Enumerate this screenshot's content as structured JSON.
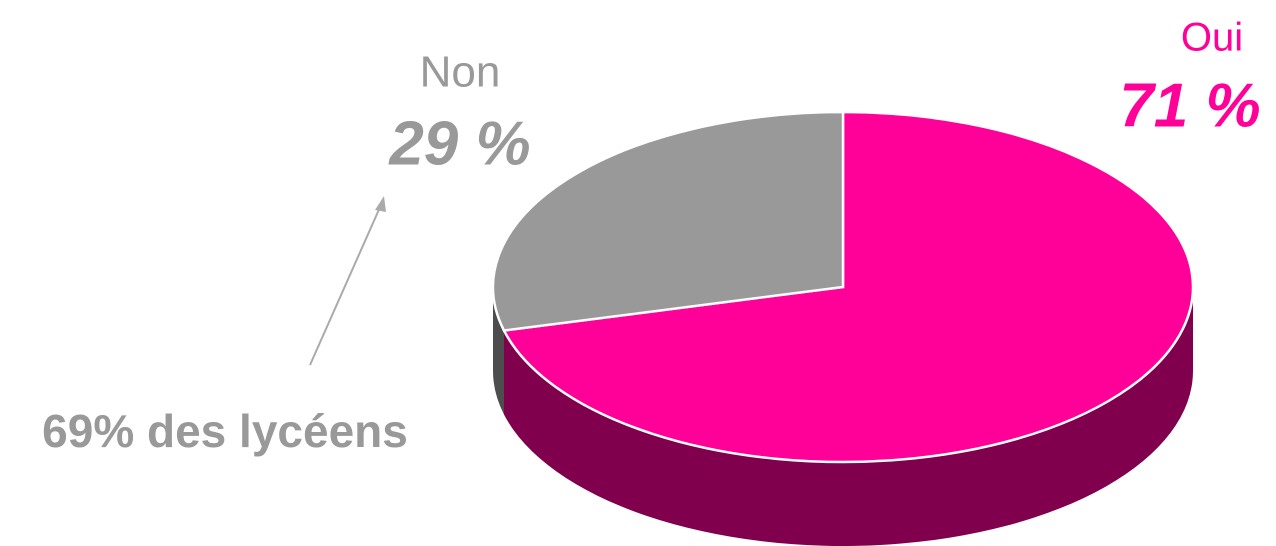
{
  "chart_data": {
    "type": "pie",
    "categories": [
      "Oui",
      "Non"
    ],
    "values": [
      71,
      29
    ],
    "value_labels": [
      "71 %",
      "29 %"
    ],
    "colors": [
      "#ff0099",
      "#999999"
    ],
    "annotation": "69% des lycéens"
  }
}
